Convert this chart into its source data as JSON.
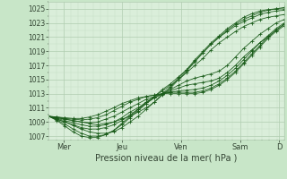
{
  "background_color": "#c8e6c8",
  "plot_bg_color": "#daeeda",
  "grid_major_color": "#b0ccb0",
  "grid_minor_color": "#c4dcc4",
  "line_color": "#1a5c1a",
  "ylim": [
    1006.5,
    1026.0
  ],
  "xlim": [
    0,
    96
  ],
  "ylabel_ticks": [
    1007,
    1009,
    1011,
    1013,
    1015,
    1017,
    1019,
    1021,
    1023,
    1025
  ],
  "xtick_positions": [
    6,
    30,
    54,
    78,
    94
  ],
  "xtick_labels": [
    "Mer",
    "Jeu",
    "Ven",
    "Sam",
    "D"
  ],
  "xlabel": "Pression niveau de la mer( hPa )",
  "series": [
    [
      1009.8,
      1009.6,
      1009.4,
      1009.2,
      1009.0,
      1008.8,
      1008.6,
      1008.8,
      1009.0,
      1009.4,
      1009.8,
      1010.4,
      1011.0,
      1011.8,
      1012.8,
      1013.8,
      1015.0,
      1016.2,
      1017.5,
      1018.8,
      1020.0,
      1021.0,
      1022.0,
      1022.8,
      1023.5,
      1024.0,
      1024.5,
      1024.8,
      1025.0,
      1025.2
    ],
    [
      1009.8,
      1009.4,
      1009.0,
      1008.5,
      1008.0,
      1007.6,
      1007.4,
      1007.4,
      1007.6,
      1008.2,
      1009.0,
      1009.8,
      1010.8,
      1011.8,
      1013.0,
      1014.0,
      1015.2,
      1016.4,
      1017.8,
      1019.0,
      1020.2,
      1021.2,
      1022.2,
      1023.0,
      1023.8,
      1024.3,
      1024.7,
      1024.9,
      1025.0,
      1025.0
    ],
    [
      1009.8,
      1009.3,
      1008.7,
      1008.0,
      1007.4,
      1007.0,
      1007.0,
      1007.2,
      1007.8,
      1008.6,
      1009.6,
      1010.6,
      1011.6,
      1012.6,
      1013.6,
      1014.4,
      1015.4,
      1016.4,
      1017.6,
      1018.8,
      1020.0,
      1021.0,
      1021.8,
      1022.6,
      1023.2,
      1023.7,
      1024.2,
      1024.5,
      1024.7,
      1024.8
    ],
    [
      1009.8,
      1009.2,
      1008.4,
      1007.6,
      1007.0,
      1006.8,
      1006.8,
      1007.2,
      1007.8,
      1008.8,
      1009.8,
      1010.8,
      1011.8,
      1012.6,
      1013.4,
      1014.2,
      1015.0,
      1016.0,
      1017.0,
      1018.0,
      1019.2,
      1020.2,
      1021.0,
      1021.8,
      1022.5,
      1023.0,
      1023.5,
      1023.8,
      1024.0,
      1024.2
    ],
    [
      1009.8,
      1009.4,
      1009.0,
      1008.6,
      1008.2,
      1008.0,
      1008.0,
      1008.2,
      1008.6,
      1009.2,
      1010.0,
      1010.8,
      1011.6,
      1012.4,
      1013.0,
      1013.6,
      1014.2,
      1014.8,
      1015.2,
      1015.5,
      1015.8,
      1016.2,
      1017.0,
      1018.2,
      1019.4,
      1020.4,
      1021.4,
      1022.2,
      1023.0,
      1023.5
    ],
    [
      1009.8,
      1009.5,
      1009.2,
      1008.9,
      1008.6,
      1008.4,
      1008.4,
      1008.6,
      1009.0,
      1009.6,
      1010.4,
      1011.0,
      1011.8,
      1012.4,
      1013.0,
      1013.4,
      1013.8,
      1014.2,
      1014.4,
      1014.6,
      1014.8,
      1015.2,
      1016.0,
      1017.0,
      1018.2,
      1019.2,
      1020.2,
      1021.0,
      1022.0,
      1022.8
    ],
    [
      1009.8,
      1009.6,
      1009.4,
      1009.2,
      1009.0,
      1008.9,
      1009.0,
      1009.4,
      1009.8,
      1010.4,
      1011.0,
      1011.6,
      1012.2,
      1012.6,
      1013.0,
      1013.2,
      1013.4,
      1013.5,
      1013.6,
      1013.8,
      1014.2,
      1014.8,
      1015.6,
      1016.6,
      1017.8,
      1019.0,
      1020.2,
      1021.2,
      1022.2,
      1023.0
    ],
    [
      1009.8,
      1009.7,
      1009.5,
      1009.4,
      1009.3,
      1009.4,
      1009.6,
      1010.0,
      1010.6,
      1011.2,
      1011.8,
      1012.2,
      1012.6,
      1012.8,
      1013.0,
      1013.2,
      1013.2,
      1013.2,
      1013.2,
      1013.4,
      1013.8,
      1014.4,
      1015.2,
      1016.2,
      1017.4,
      1018.6,
      1019.8,
      1021.0,
      1022.0,
      1022.8
    ],
    [
      1009.8,
      1009.7,
      1009.6,
      1009.5,
      1009.5,
      1009.7,
      1010.0,
      1010.5,
      1011.0,
      1011.6,
      1012.0,
      1012.4,
      1012.6,
      1012.8,
      1013.0,
      1013.0,
      1013.0,
      1013.0,
      1013.0,
      1013.2,
      1013.6,
      1014.2,
      1015.0,
      1016.0,
      1017.2,
      1018.4,
      1019.6,
      1020.8,
      1021.8,
      1022.6
    ]
  ]
}
